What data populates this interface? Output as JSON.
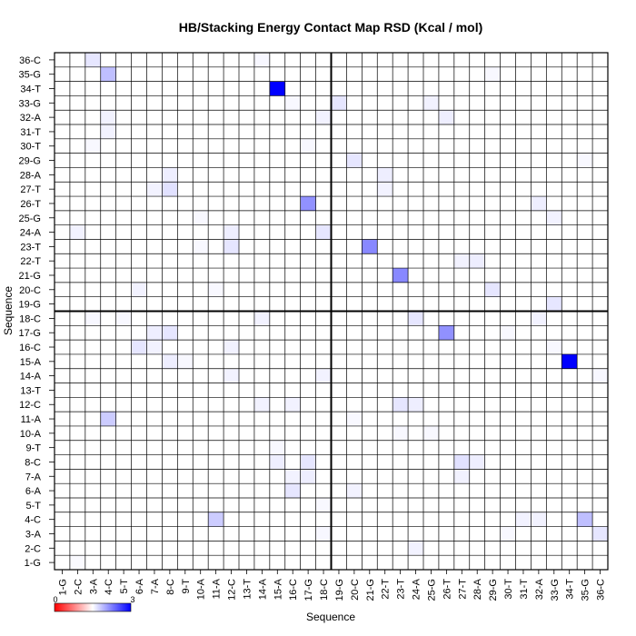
{
  "chart_data": {
    "type": "heatmap",
    "title": "HB/Stacking Energy Contact Map RSD (Kcal / mol)",
    "xlabel": "Sequence",
    "ylabel": "Sequence",
    "x_ticks": [
      "1-G",
      "2-C",
      "3-A",
      "4-C",
      "5-T",
      "6-A",
      "7-A",
      "8-C",
      "9-T",
      "10-A",
      "11-A",
      "12-C",
      "13-T",
      "14-A",
      "15-A",
      "16-C",
      "17-G",
      "18-C",
      "19-G",
      "20-C",
      "21-G",
      "22-T",
      "23-T",
      "24-A",
      "25-G",
      "26-T",
      "27-T",
      "28-A",
      "29-G",
      "30-T",
      "31-T",
      "32-A",
      "33-G",
      "34-T",
      "35-G",
      "36-C"
    ],
    "y_ticks": [
      "1-G",
      "2-C",
      "3-A",
      "4-C",
      "5-T",
      "6-A",
      "7-A",
      "8-C",
      "9-T",
      "10-A",
      "11-A",
      "12-C",
      "13-T",
      "14-A",
      "15-A",
      "16-C",
      "17-G",
      "18-C",
      "19-G",
      "20-C",
      "21-G",
      "22-T",
      "23-T",
      "24-A",
      "25-G",
      "26-T",
      "27-T",
      "28-A",
      "29-G",
      "30-T",
      "31-T",
      "32-A",
      "33-G",
      "34-T",
      "35-G",
      "36-C"
    ],
    "colorbar": {
      "min": 0,
      "max": 3,
      "tick_labels": [
        "0",
        "3"
      ],
      "low_color": "#ff0000",
      "mid_color": "#ffffff",
      "high_color": "#0000ff"
    },
    "strand_boundary_after": 18,
    "grid": true,
    "cells": [
      {
        "x": 15,
        "y": 34,
        "v": 3.0
      },
      {
        "x": 34,
        "y": 15,
        "v": 3.0
      },
      {
        "x": 4,
        "y": 35,
        "v": 0.75
      },
      {
        "x": 35,
        "y": 4,
        "v": 0.75
      },
      {
        "x": 4,
        "y": 11,
        "v": 0.6
      },
      {
        "x": 11,
        "y": 4,
        "v": 0.6
      },
      {
        "x": 17,
        "y": 26,
        "v": 1.3
      },
      {
        "x": 26,
        "y": 17,
        "v": 1.3
      },
      {
        "x": 21,
        "y": 23,
        "v": 1.4
      },
      {
        "x": 23,
        "y": 21,
        "v": 1.4
      },
      {
        "x": 3,
        "y": 36,
        "v": 0.3
      },
      {
        "x": 36,
        "y": 3,
        "v": 0.3
      },
      {
        "x": 20,
        "y": 29,
        "v": 0.3
      },
      {
        "x": 29,
        "y": 20,
        "v": 0.3
      },
      {
        "x": 8,
        "y": 27,
        "v": 0.35
      },
      {
        "x": 27,
        "y": 8,
        "v": 0.35
      },
      {
        "x": 8,
        "y": 17,
        "v": 0.3
      },
      {
        "x": 17,
        "y": 8,
        "v": 0.3
      },
      {
        "x": 12,
        "y": 23,
        "v": 0.3
      },
      {
        "x": 23,
        "y": 12,
        "v": 0.3
      },
      {
        "x": 18,
        "y": 24,
        "v": 0.3
      },
      {
        "x": 24,
        "y": 18,
        "v": 0.3
      },
      {
        "x": 33,
        "y": 19,
        "v": 0.3
      },
      {
        "x": 19,
        "y": 33,
        "v": 0.3
      },
      {
        "x": 6,
        "y": 16,
        "v": 0.3
      },
      {
        "x": 16,
        "y": 6,
        "v": 0.3
      },
      {
        "x": 8,
        "y": 15,
        "v": 0.2
      },
      {
        "x": 15,
        "y": 8,
        "v": 0.2
      },
      {
        "x": 7,
        "y": 16,
        "v": 0.15
      },
      {
        "x": 16,
        "y": 7,
        "v": 0.15
      },
      {
        "x": 2,
        "y": 24,
        "v": 0.15
      },
      {
        "x": 24,
        "y": 2,
        "v": 0.15
      },
      {
        "x": 32,
        "y": 26,
        "v": 0.2
      },
      {
        "x": 26,
        "y": 32,
        "v": 0.2
      },
      {
        "x": 33,
        "y": 25,
        "v": 0.15
      },
      {
        "x": 25,
        "y": 33,
        "v": 0.15
      },
      {
        "x": 18,
        "y": 32,
        "v": 0.15
      },
      {
        "x": 32,
        "y": 18,
        "v": 0.15
      },
      {
        "x": 28,
        "y": 22,
        "v": 0.2
      },
      {
        "x": 22,
        "y": 28,
        "v": 0.2
      },
      {
        "x": 24,
        "y": 12,
        "v": 0.2
      },
      {
        "x": 12,
        "y": 24,
        "v": 0.2
      },
      {
        "x": 14,
        "y": 12,
        "v": 0.15
      },
      {
        "x": 12,
        "y": 14,
        "v": 0.15
      },
      {
        "x": 16,
        "y": 12,
        "v": 0.15
      },
      {
        "x": 12,
        "y": 16,
        "v": 0.15
      },
      {
        "x": 17,
        "y": 7,
        "v": 0.2
      },
      {
        "x": 7,
        "y": 17,
        "v": 0.2
      },
      {
        "x": 15,
        "y": 8,
        "v": 0.2
      },
      {
        "x": 18,
        "y": 14,
        "v": 0.15
      },
      {
        "x": 14,
        "y": 18,
        "v": 0.15
      },
      {
        "x": 31,
        "y": 4,
        "v": 0.15
      },
      {
        "x": 4,
        "y": 31,
        "v": 0.15
      },
      {
        "x": 32,
        "y": 4,
        "v": 0.15
      },
      {
        "x": 4,
        "y": 32,
        "v": 0.15
      },
      {
        "x": 22,
        "y": 27,
        "v": 0.15
      },
      {
        "x": 27,
        "y": 22,
        "v": 0.15
      },
      {
        "x": 27,
        "y": 7,
        "v": 0.15
      },
      {
        "x": 7,
        "y": 27,
        "v": 0.15
      },
      {
        "x": 28,
        "y": 8,
        "v": 0.2
      },
      {
        "x": 8,
        "y": 28,
        "v": 0.2
      },
      {
        "x": 3,
        "y": 30,
        "v": 0.08
      },
      {
        "x": 30,
        "y": 3,
        "v": 0.08
      },
      {
        "x": 14,
        "y": 36,
        "v": 0.1
      },
      {
        "x": 36,
        "y": 14,
        "v": 0.1
      },
      {
        "x": 2,
        "y": 1,
        "v": 0.06
      },
      {
        "x": 10,
        "y": 25,
        "v": 0.08
      },
      {
        "x": 25,
        "y": 10,
        "v": 0.08
      },
      {
        "x": 11,
        "y": 20,
        "v": 0.08
      },
      {
        "x": 20,
        "y": 11,
        "v": 0.08
      },
      {
        "x": 6,
        "y": 20,
        "v": 0.15
      },
      {
        "x": 20,
        "y": 6,
        "v": 0.15
      },
      {
        "x": 18,
        "y": 3,
        "v": 0.1
      },
      {
        "x": 3,
        "y": 18,
        "v": 0.1
      },
      {
        "x": 24,
        "y": 2,
        "v": 0.15
      },
      {
        "x": 5,
        "y": 18,
        "v": 0.08
      },
      {
        "x": 18,
        "y": 5,
        "v": 0.08
      },
      {
        "x": 29,
        "y": 35,
        "v": 0.08
      },
      {
        "x": 35,
        "y": 29,
        "v": 0.08
      },
      {
        "x": 30,
        "y": 17,
        "v": 0.08
      },
      {
        "x": 17,
        "y": 30,
        "v": 0.08
      },
      {
        "x": 36,
        "y": 14,
        "v": 0.1
      },
      {
        "x": 33,
        "y": 16,
        "v": 0.08
      },
      {
        "x": 16,
        "y": 33,
        "v": 0.08
      },
      {
        "x": 23,
        "y": 10,
        "v": 0.08
      },
      {
        "x": 10,
        "y": 23,
        "v": 0.08
      },
      {
        "x": 9,
        "y": 15,
        "v": 0.08
      },
      {
        "x": 15,
        "y": 9,
        "v": 0.08
      }
    ]
  }
}
